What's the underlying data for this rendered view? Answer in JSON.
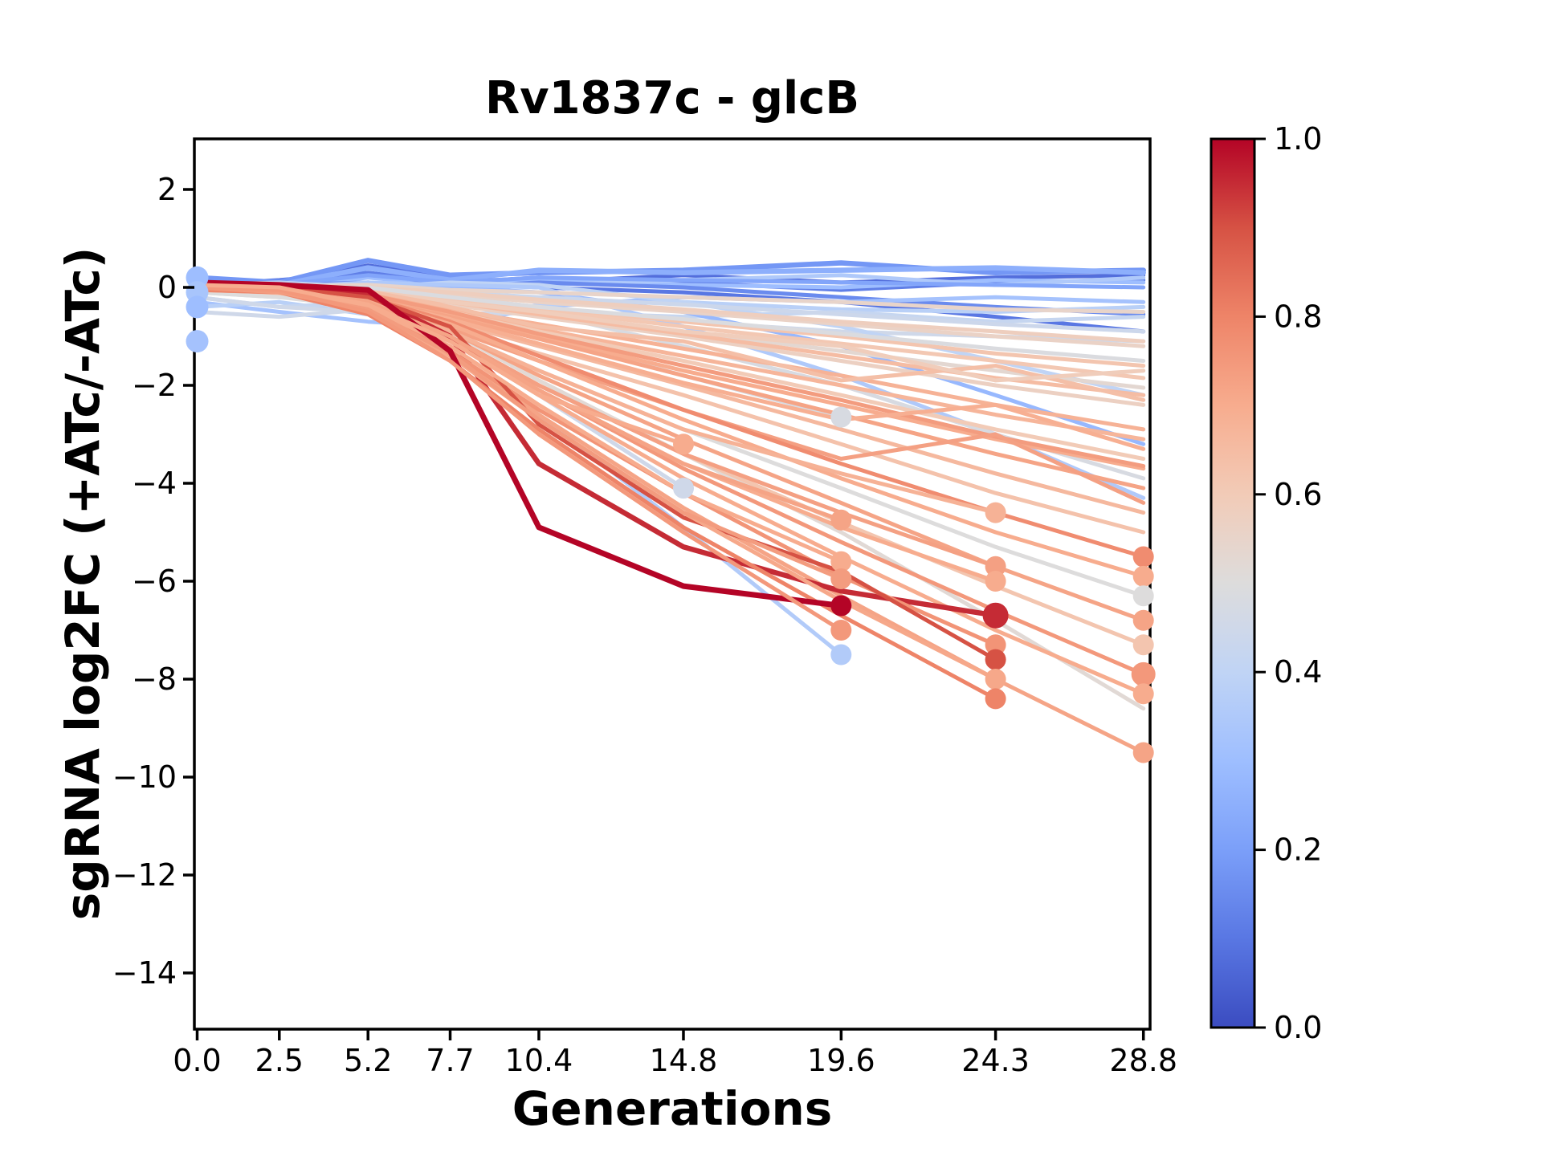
{
  "figure": {
    "background": "#ffffff",
    "spine_color": "#000000",
    "text_color": "#000000"
  },
  "chart_data": {
    "type": "line",
    "title": "Rv1837c - glcB",
    "xlabel": "Generations",
    "ylabel": "sgRNA log2FC (+ATc/-ATc)",
    "grid": false,
    "xlim": [
      -0.06,
      29.0
    ],
    "ylim": [
      -15.15,
      3.03
    ],
    "x_ticks": {
      "values": [
        0.0,
        2.5,
        5.2,
        7.7,
        10.4,
        14.8,
        19.6,
        24.3,
        28.8
      ],
      "labels": [
        "0.0",
        "2.5",
        "5.2",
        "7.7",
        "10.4",
        "14.8",
        "19.6",
        "24.3",
        "28.8"
      ]
    },
    "y_ticks": {
      "values": [
        2,
        0,
        -2,
        -4,
        -6,
        -8,
        -10,
        -12,
        -14
      ],
      "labels": [
        "2",
        "0",
        "−2",
        "−4",
        "−6",
        "−8",
        "−10",
        "−12",
        "−14"
      ]
    },
    "colorbar": {
      "colormap": "coolwarm",
      "ticks": [
        {
          "v": 0.0,
          "label": "0.0"
        },
        {
          "v": 0.2,
          "label": "0.2"
        },
        {
          "v": 0.4,
          "label": "0.4"
        },
        {
          "v": 0.6,
          "label": "0.6"
        },
        {
          "v": 0.8,
          "label": "0.8"
        },
        {
          "v": 1.0,
          "label": "1.0"
        }
      ]
    },
    "colormap_anchors": [
      "#3b4cc0",
      "#5977e3",
      "#7b9ff9",
      "#9ebeff",
      "#c0d4f5",
      "#dddcdc",
      "#f2cbb7",
      "#f7ac8e",
      "#ee8468",
      "#d65244",
      "#b40426"
    ],
    "x_points": [
      0,
      2.5,
      5.2,
      7.7,
      10.4,
      14.8,
      19.6,
      24.3,
      28.8
    ],
    "series": [
      {
        "c": 0.08,
        "y": [
          0.15,
          0.1,
          0.45,
          0.2,
          0.1,
          0.25,
          0.1,
          0.2,
          0.25
        ]
      },
      {
        "c": 0.12,
        "y": [
          0.05,
          0.15,
          0.3,
          0.1,
          0.2,
          0.1,
          -0.05,
          0.1,
          0.15
        ]
      },
      {
        "c": 0.18,
        "w": 6.5,
        "y": [
          0.2,
          0.1,
          0.55,
          0.25,
          0.3,
          0.35,
          0.5,
          0.3,
          0.35
        ]
      },
      {
        "c": 0.25,
        "w": 6.5,
        "y": [
          0.1,
          0.05,
          0.4,
          0.15,
          0.35,
          0.3,
          0.35,
          0.4,
          0.3
        ]
      },
      {
        "c": 0.3,
        "y": [
          -0.05,
          0,
          0.2,
          0.05,
          0.15,
          0.05,
          0,
          0.15,
          0.1
        ]
      },
      {
        "c": 0.35,
        "y": [
          0,
          -0.1,
          0.1,
          -0.05,
          0.05,
          0.15,
          0.25,
          0.05,
          0.2
        ]
      },
      {
        "c": 0.1,
        "y": [
          -0.1,
          0,
          0.05,
          0.1,
          0,
          -0.1,
          -0.3,
          -0.6,
          -0.9
        ]
      },
      {
        "c": 0.15,
        "y": [
          0,
          0.05,
          0.1,
          0,
          0.1,
          0,
          -0.2,
          -0.4,
          -0.55
        ]
      },
      {
        "c": 0.22,
        "y": [
          0.1,
          0.05,
          0.25,
          0.1,
          0.2,
          0.15,
          0.1,
          0.05,
          0
        ]
      },
      {
        "c": 0.32,
        "y": [
          -0.3,
          -0.5,
          -0.7,
          -0.8,
          -0.4,
          -0.2,
          -0.3,
          -0.2,
          -0.3
        ]
      },
      {
        "c": 0.38,
        "y": [
          -0.4,
          -0.3,
          -0.55,
          -0.75,
          -0.35,
          -0.3,
          -0.45,
          -0.5,
          -0.4
        ]
      },
      {
        "c": 0.42,
        "y": [
          -0.2,
          -0.4,
          -0.3,
          -0.6,
          -0.5,
          -0.6,
          -0.5,
          -0.7,
          -0.6
        ]
      },
      {
        "c": 0.45,
        "y": [
          -0.5,
          -0.6,
          -0.45,
          -0.55,
          -0.5,
          -0.7,
          -0.9,
          -1.0,
          -1.1
        ]
      },
      {
        "c": 0.4,
        "y": [
          0.05,
          0.1,
          0,
          0.1,
          0.05,
          -0.3,
          -0.8,
          -1.5,
          -2.2
        ]
      },
      {
        "c": 0.28,
        "y": [
          0,
          -0.05,
          0.05,
          0,
          -0.1,
          -0.5,
          -1.2,
          -2.2,
          -3.2
        ]
      },
      {
        "c": 0.35,
        "y": [
          0.05,
          0,
          0.1,
          0.05,
          0,
          -0.8,
          -1.8,
          -3.0,
          -4.3
        ]
      },
      {
        "c": 0.48,
        "y": [
          -0.1,
          -0.2,
          -0.15,
          -0.3,
          -0.5,
          -1.2,
          -2.0,
          -3.0,
          -3.9
        ]
      },
      {
        "c": 0.44,
        "y": [
          0,
          0.05,
          0.05,
          -0.1,
          -0.2,
          -0.35,
          -0.55,
          -0.75,
          -0.9
        ]
      },
      {
        "c": 0.36,
        "m": 1,
        "y": [
          0,
          -0.2,
          -0.3,
          -1.3,
          -2.6,
          -4.9,
          -7.5
        ]
      },
      {
        "c": 0.45,
        "m": 1,
        "y": [
          -0.2,
          -0.4,
          -0.5,
          -1.1,
          -2.2,
          -4.1
        ]
      },
      {
        "c": 0.48,
        "m": 1,
        "y": [
          0,
          -0.1,
          -0.2,
          -0.5,
          -1.0,
          -1.8,
          -2.65
        ]
      },
      {
        "c": 0.52,
        "y": [
          0,
          -0.1,
          -0.3,
          -0.9,
          -1.9,
          -3.4,
          -5.0,
          -6.8,
          -8.6
        ]
      },
      {
        "c": 0.55,
        "y": [
          0.05,
          0,
          0.05,
          -0.05,
          -0.1,
          -0.2,
          -0.3,
          -0.45,
          -0.5
        ]
      },
      {
        "c": 0.56,
        "y": [
          0.05,
          0,
          -0.05,
          -0.15,
          -0.3,
          -0.5,
          -0.75,
          -1.0,
          -1.2
        ]
      },
      {
        "c": 0.58,
        "y": [
          0.1,
          0.05,
          0,
          -0.1,
          -0.25,
          -0.45,
          -0.7,
          -0.9,
          -1.1
        ]
      },
      {
        "c": 0.61,
        "y": [
          0,
          0.05,
          -0.1,
          -0.25,
          -0.45,
          -0.8,
          -1.15,
          -1.5,
          -1.85
        ]
      },
      {
        "c": 0.62,
        "y": [
          0,
          0.05,
          -0.05,
          -0.2,
          -0.4,
          -0.7,
          -1.0,
          -1.35,
          -1.6
        ]
      },
      {
        "c": 0.53,
        "y": [
          0,
          -0.05,
          -0.1,
          -0.3,
          -0.55,
          -0.9,
          -1.3,
          -1.7,
          -2.05
        ]
      },
      {
        "c": 0.57,
        "y": [
          0.1,
          0,
          -0.1,
          -0.35,
          -0.6,
          -1.0,
          -1.5,
          -2.0,
          -2.4
        ]
      },
      {
        "c": 0.65,
        "y": [
          0.05,
          0,
          -0.1,
          -0.3,
          -0.55,
          -0.95,
          -1.4,
          -1.85,
          -2.2
        ]
      },
      {
        "c": 0.68,
        "y": [
          0,
          -0.05,
          -0.15,
          -0.45,
          -0.75,
          -1.25,
          -1.8,
          -2.4,
          -2.9
        ]
      },
      {
        "c": 0.67,
        "y": [
          -0.05,
          -0.1,
          -0.2,
          -0.5,
          -0.85,
          -1.4,
          -2.0,
          -2.6,
          -3.1
        ]
      },
      {
        "c": 0.6,
        "y": [
          -0.05,
          0,
          -0.2,
          -0.5,
          -0.9,
          -1.5,
          -2.2,
          -2.9,
          -3.5
        ]
      },
      {
        "c": 0.7,
        "y": [
          0,
          -0.05,
          -0.2,
          -0.55,
          -1.0,
          -1.7,
          -2.4,
          -3.1,
          -3.7
        ]
      },
      {
        "c": 0.74,
        "y": [
          0.05,
          0,
          -0.15,
          -0.5,
          -0.95,
          -1.6,
          -2.3,
          -3.05,
          -3.65
        ]
      },
      {
        "c": 0.72,
        "y": [
          0.05,
          -0.05,
          -0.25,
          -0.6,
          -1.05,
          -1.8,
          -2.6,
          -3.4,
          -4.1
        ]
      },
      {
        "c": 0.66,
        "y": [
          0,
          -0.1,
          -0.3,
          -0.7,
          -1.2,
          -2.0,
          -2.9,
          -3.8,
          -4.6
        ]
      },
      {
        "c": 0.63,
        "y": [
          -0.1,
          -0.15,
          -0.35,
          -0.8,
          -1.35,
          -2.2,
          -3.2,
          -4.2,
          -5.0
        ]
      },
      {
        "c": 0.64,
        "y": [
          0,
          -0.1,
          -0.05,
          -0.4,
          -0.8,
          -1.1,
          -1.9,
          -1.6,
          -2.3
        ]
      },
      {
        "c": 0.59,
        "y": [
          0.05,
          -0.05,
          0,
          -0.3,
          -0.5,
          -0.9,
          -1.2,
          -1.9,
          -1.7
        ]
      },
      {
        "c": 0.69,
        "y": [
          -0.05,
          0,
          -0.25,
          -0.65,
          -1.15,
          -1.95,
          -2.7,
          -2.4,
          -3.3
        ]
      },
      {
        "c": 0.73,
        "y": [
          0,
          -0.1,
          -0.35,
          -0.85,
          -1.5,
          -2.5,
          -3.5,
          -3.0,
          -4.4
        ]
      },
      {
        "c": 0.49,
        "y": [
          0.05,
          0,
          0,
          -0.2,
          -0.4,
          -0.65,
          -0.95,
          -1.25,
          -1.5
        ]
      },
      {
        "c": 0.78,
        "m": 1,
        "y": [
          0.05,
          0,
          -0.2,
          -0.7,
          -1.4,
          -2.5,
          -3.6,
          -4.6,
          -5.5
        ]
      },
      {
        "c": 0.7,
        "m": 1,
        "y": [
          0,
          -0.05,
          -0.25,
          -0.75,
          -1.5,
          -2.7,
          -3.9,
          -5.0,
          -5.9
        ]
      },
      {
        "c": 0.5,
        "m": 1,
        "y": [
          -0.1,
          -0.2,
          -0.4,
          -0.9,
          -1.7,
          -2.9,
          -4.1,
          -5.3,
          -6.3
        ]
      },
      {
        "c": 0.72,
        "m": 1,
        "y": [
          0.05,
          0,
          -0.3,
          -0.9,
          -1.8,
          -3.1,
          -4.4,
          -5.7,
          -6.8
        ]
      },
      {
        "c": 0.62,
        "m": 1,
        "y": [
          0,
          -0.1,
          -0.35,
          -1.0,
          -2.0,
          -3.4,
          -4.8,
          -6.1,
          -7.3
        ]
      },
      {
        "c": 0.75,
        "m": 1,
        "ms": 15,
        "y": [
          0,
          -0.05,
          -0.3,
          -1.0,
          -2.1,
          -3.7,
          -5.2,
          -6.6,
          -7.9
        ]
      },
      {
        "c": 0.7,
        "m": 1,
        "y": [
          -0.05,
          -0.1,
          -0.4,
          -1.1,
          -2.2,
          -3.9,
          -5.5,
          -7.0,
          -8.3
        ]
      },
      {
        "c": 0.72,
        "m": 1,
        "y": [
          0,
          -0.1,
          -0.45,
          -1.3,
          -2.6,
          -4.5,
          -6.3,
          -8.0,
          -9.5
        ]
      },
      {
        "c": 0.68,
        "m": 1,
        "y": [
          0,
          -0.05,
          -0.3,
          -0.9,
          -1.7,
          -2.9,
          -3.8,
          -4.6
        ]
      },
      {
        "c": 0.73,
        "m": 1,
        "y": [
          0.05,
          0,
          -0.35,
          -1.0,
          -2.0,
          -3.4,
          -4.6,
          -5.7
        ]
      },
      {
        "c": 0.7,
        "m": 1,
        "y": [
          0,
          -0.1,
          -0.4,
          -1.1,
          -2.1,
          -3.6,
          -4.9,
          -6.0
        ]
      },
      {
        "c": 0.95,
        "m": 1,
        "ms": 16,
        "w": 6.5,
        "y": [
          0.05,
          0,
          -0.15,
          -1.0,
          -3.6,
          -5.3,
          -6.2,
          -6.7
        ]
      },
      {
        "c": 0.76,
        "m": 1,
        "y": [
          0,
          -0.05,
          -0.45,
          -1.3,
          -2.5,
          -4.2,
          -5.9,
          -7.3
        ]
      },
      {
        "c": 0.9,
        "m": 1,
        "y": [
          0.05,
          0,
          -0.2,
          -0.8,
          -2.8,
          -4.7,
          -5.8,
          -7.6
        ]
      },
      {
        "c": 0.71,
        "m": 1,
        "y": [
          0,
          -0.1,
          -0.5,
          -1.4,
          -2.7,
          -4.6,
          -6.4,
          -8.0
        ]
      },
      {
        "c": 0.8,
        "m": 1,
        "y": [
          -0.05,
          -0.1,
          -0.55,
          -1.5,
          -2.9,
          -4.9,
          -6.7,
          -8.4
        ]
      },
      {
        "c": 0.72,
        "m": 1,
        "y": [
          0,
          -0.05,
          -0.3,
          -1.0,
          -2.1,
          -3.6,
          -4.75
        ]
      },
      {
        "c": 0.7,
        "m": 1,
        "y": [
          0.05,
          0,
          -0.4,
          -1.2,
          -2.4,
          -4.2,
          -5.6
        ]
      },
      {
        "c": 0.74,
        "m": 1,
        "y": [
          0,
          -0.1,
          -0.45,
          -1.35,
          -2.7,
          -4.6,
          -5.95
        ]
      },
      {
        "c": 1.0,
        "m": 1,
        "w": 7,
        "y": [
          0.1,
          0.05,
          -0.05,
          -1.3,
          -4.9,
          -6.1,
          -6.5
        ]
      },
      {
        "c": 0.75,
        "m": 1,
        "y": [
          0,
          -0.05,
          -0.5,
          -1.5,
          -3.0,
          -5.0,
          -7.0
        ]
      },
      {
        "c": 0.7,
        "m": 1,
        "y": [
          0.05,
          0,
          -0.35,
          -1.1,
          -2.2,
          -3.2
        ]
      },
      {
        "c": 0.3,
        "m": 1,
        "ms": 14,
        "y": [
          0.2
        ]
      },
      {
        "c": 0.33,
        "m": 1,
        "ms": 14,
        "y": [
          -0.1
        ]
      },
      {
        "c": 0.3,
        "m": 1,
        "ms": 14,
        "y": [
          -0.4
        ]
      },
      {
        "c": 0.32,
        "m": 1,
        "ms": 14,
        "y": [
          -1.1
        ]
      }
    ]
  }
}
